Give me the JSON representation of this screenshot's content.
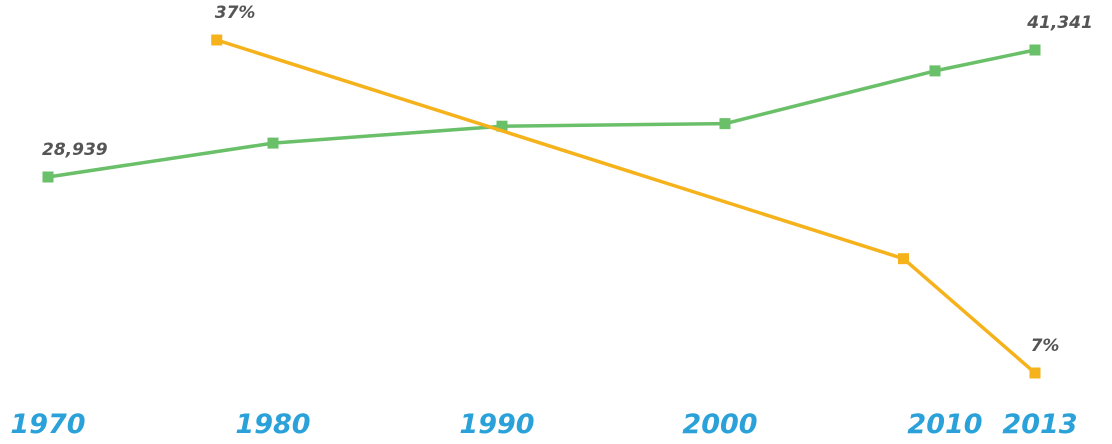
{
  "chart_data": {
    "type": "line",
    "grid": false,
    "axis_color": "#2aa1d8",
    "x_ticks": [
      "1970",
      "1980",
      "1990",
      "2000",
      "2010",
      "2013"
    ],
    "series": [
      {
        "color": "#6abf69",
        "x": [
          1970,
          1980,
          1990,
          2000,
          2010,
          2013
        ],
        "values": [
          28939,
          32250,
          33900,
          34150,
          39300,
          41341
        ],
        "labels": [
          "28,939",
          "",
          "",
          "",
          "",
          "41,341"
        ]
      },
      {
        "color": "#f6b21b",
        "x": [
          1977.5,
          2008.5,
          2013
        ],
        "values": [
          37,
          17.3,
          7
        ],
        "labels": [
          "37%",
          "",
          "7%"
        ]
      }
    ]
  }
}
